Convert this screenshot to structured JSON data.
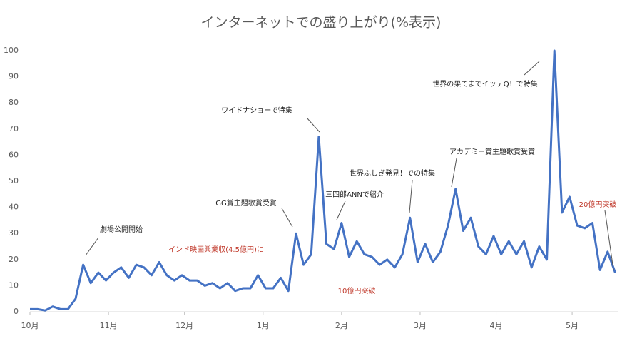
{
  "chart_data": {
    "type": "line",
    "title": "インターネットでの盛り上がり(%表示)",
    "x": [
      0,
      3,
      6,
      9,
      12,
      15,
      18,
      21,
      24,
      27,
      30,
      33,
      36,
      39,
      42,
      45,
      48,
      51,
      54,
      57,
      60,
      63,
      66,
      69,
      72,
      75,
      78,
      81,
      84,
      87,
      90,
      93,
      96,
      99,
      102,
      105,
      108,
      111,
      114,
      117,
      120,
      123,
      126,
      129,
      132,
      135,
      138,
      141,
      144,
      147,
      150,
      153,
      156,
      159,
      162,
      165,
      168,
      171,
      174,
      177,
      180,
      183,
      186,
      189,
      192,
      195,
      198,
      201,
      204,
      207,
      210,
      213,
      216,
      219,
      222,
      225,
      228,
      231
    ],
    "series": [
      {
        "name": "インターネットでの盛り上がり",
        "color": "#4472c4",
        "values": [
          1,
          1,
          0.5,
          2,
          1,
          1,
          5,
          18,
          11,
          15,
          12,
          15,
          17,
          13,
          18,
          17,
          14,
          19,
          14,
          12,
          14,
          12,
          12,
          10,
          11,
          9,
          11,
          8,
          9,
          9,
          14,
          9,
          9,
          13,
          8,
          30,
          18,
          22,
          67,
          26,
          24,
          34,
          21,
          27,
          22,
          21,
          18,
          20,
          17,
          22,
          36,
          19,
          26,
          19,
          23,
          33,
          47,
          31,
          36,
          25,
          22,
          29,
          22,
          27,
          22,
          27,
          17,
          25,
          20,
          100,
          38,
          44,
          33,
          32,
          34,
          16,
          23,
          15
        ]
      }
    ],
    "xlim": [
      0,
      232
    ],
    "xticks": [
      {
        "value": 0,
        "label": "10月"
      },
      {
        "value": 31,
        "label": "11月"
      },
      {
        "value": 61,
        "label": "12月"
      },
      {
        "value": 92,
        "label": "1月"
      },
      {
        "value": 123,
        "label": "2月"
      },
      {
        "value": 154,
        "label": "3月"
      },
      {
        "value": 184,
        "label": "4月"
      },
      {
        "value": 214,
        "label": "5月"
      }
    ],
    "ylim": [
      0,
      100
    ],
    "yticks": [
      0,
      10,
      20,
      30,
      40,
      50,
      60,
      70,
      80,
      90,
      100
    ],
    "grid": false,
    "annotations": [
      {
        "text": "劇場公開開始",
        "color": "#222222"
      },
      {
        "text": "インド映画興業収(4.5億円)に",
        "color": "#c0392b"
      },
      {
        "text": "GG賞主題歌賞受賞",
        "color": "#222222"
      },
      {
        "text": "ワイドナショーで特集",
        "color": "#222222"
      },
      {
        "text": "三四郎ANNで紹介",
        "color": "#222222"
      },
      {
        "text": "世界ふしぎ発見！での特集",
        "color": "#222222"
      },
      {
        "text": "10億円突破",
        "color": "#c0392b"
      },
      {
        "text": "アカデミー賞主題歌賞受賞",
        "color": "#222222"
      },
      {
        "text": "世界の果てまでイッテQ！で特集",
        "color": "#222222"
      },
      {
        "text": "20億円突破",
        "color": "#c0392b"
      }
    ]
  }
}
